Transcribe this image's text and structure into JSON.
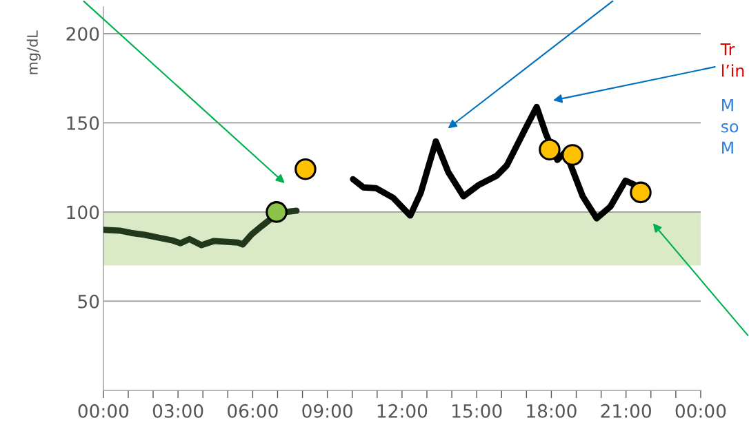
{
  "chart_data": {
    "type": "line",
    "ylabel": "mg/dL",
    "xlim": [
      0,
      24
    ],
    "ylim": [
      0,
      215
    ],
    "xticks": [
      {
        "value": 0,
        "label": "00:00"
      },
      {
        "value": 1,
        "label": null
      },
      {
        "value": 2,
        "label": null
      },
      {
        "value": 3,
        "label": "03:00"
      },
      {
        "value": 4,
        "label": null
      },
      {
        "value": 5,
        "label": null
      },
      {
        "value": 6,
        "label": "06:00"
      },
      {
        "value": 7,
        "label": null
      },
      {
        "value": 8,
        "label": null
      },
      {
        "value": 9,
        "label": "09:00"
      },
      {
        "value": 10,
        "label": null
      },
      {
        "value": 11,
        "label": null
      },
      {
        "value": 12,
        "label": "12:00"
      },
      {
        "value": 13,
        "label": null
      },
      {
        "value": 14,
        "label": null
      },
      {
        "value": 15,
        "label": "15:00"
      },
      {
        "value": 16,
        "label": null
      },
      {
        "value": 17,
        "label": null
      },
      {
        "value": 18,
        "label": "18:00"
      },
      {
        "value": 19,
        "label": null
      },
      {
        "value": 20,
        "label": null
      },
      {
        "value": 21,
        "label": "21:00"
      },
      {
        "value": 22,
        "label": null
      },
      {
        "value": 23,
        "label": null
      },
      {
        "value": 24,
        "label": "00:00"
      }
    ],
    "yticks": [
      50,
      100,
      150,
      200
    ],
    "grid": "y",
    "legend": false,
    "marker": "none",
    "bands": [
      {
        "axis": "y",
        "from": 70,
        "to": 100,
        "color": "#dbeac6"
      }
    ],
    "series": [
      {
        "color": "#22381c",
        "x": [
          0,
          0.69,
          1.11,
          1.66,
          2.22,
          2.77,
          3.1,
          3.46,
          3.94,
          4.43,
          4.99,
          5.4,
          5.6,
          5.96,
          6.37,
          6.79,
          7.21,
          7.76
        ],
        "values": [
          90,
          89.5,
          88.3,
          87.2,
          85.6,
          84.1,
          82.5,
          84.8,
          81.4,
          83.7,
          83.3,
          82.9,
          81.8,
          87.5,
          92.2,
          96.8,
          99.9,
          100.7
        ]
      },
      {
        "color": "#000000",
        "x": [
          10.03,
          10.45,
          10.95,
          11.64,
          12.33,
          12.75,
          13.36,
          13.86,
          14.47,
          15.1,
          15.8,
          16.21,
          16.91,
          17.41,
          17.79,
          18.24,
          18.57,
          19.26,
          19.82,
          20.37,
          20.98,
          21.34
        ],
        "values": [
          118.4,
          113.8,
          113.4,
          108,
          98,
          110.7,
          139.6,
          122.3,
          108.8,
          115.3,
          120.3,
          126.1,
          145.4,
          158.9,
          143.5,
          129.2,
          133.8,
          108.8,
          96.4,
          103,
          117.6,
          115.3
        ]
      },
      {
        "type": "scatter",
        "marker": "circle",
        "x": [
          6.96
        ],
        "values": [
          100
        ],
        "color": "#8bc34a"
      },
      {
        "type": "scatter",
        "marker": "circle",
        "x": [
          8.12,
          17.93,
          18.85,
          21.59
        ],
        "values": [
          124,
          135,
          132,
          111
        ],
        "color": "#ffc000"
      }
    ],
    "annotations": [
      "Tr\nl’in",
      "M\nso\nM"
    ]
  }
}
